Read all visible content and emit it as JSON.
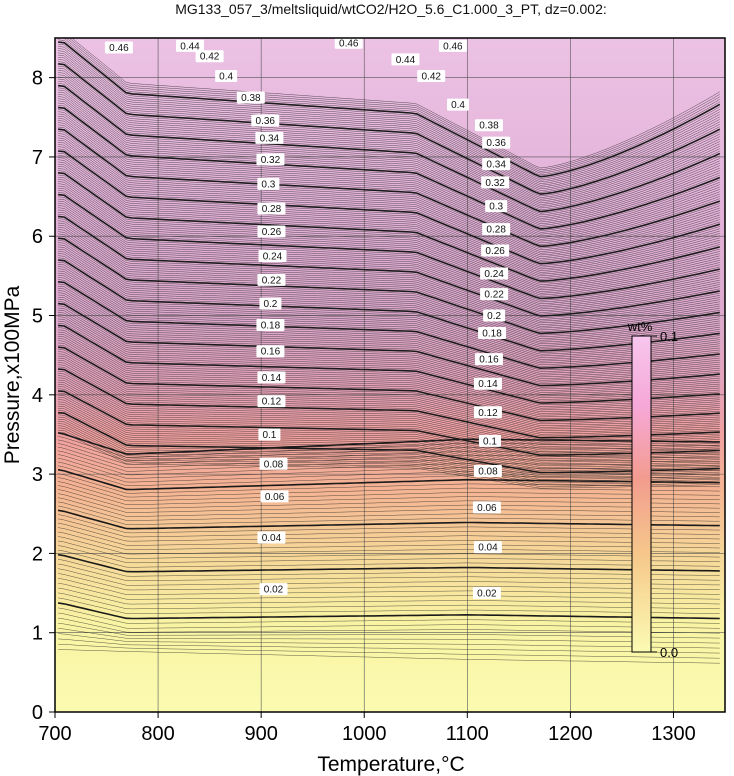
{
  "chart_data": {
    "type": "contour",
    "title": "MG133_057_3/meltsliquid/wtCO2/H2O_5.6_C1.000_3_PT, dz=0.002:",
    "xlabel": "Temperature,°C",
    "ylabel": "Pressure,x100MPa",
    "xlim": [
      700,
      1350
    ],
    "ylim": [
      0,
      8.5
    ],
    "x_ticks": [
      700,
      800,
      900,
      1000,
      1100,
      1200,
      1300
    ],
    "y_ticks": [
      0,
      1,
      2,
      3,
      4,
      5,
      6,
      7,
      8
    ],
    "grid": true,
    "contour_interval": 0.002,
    "labeled_levels": [
      0.02,
      0.04,
      0.06,
      0.08,
      0.1,
      0.12,
      0.14,
      0.16,
      0.18,
      0.2,
      0.22,
      0.24,
      0.26,
      0.28,
      0.3,
      0.32,
      0.34,
      0.36,
      0.38,
      0.4,
      0.42,
      0.44,
      0.46
    ],
    "contour_labels": [
      {
        "text": "0.02",
        "x": 912,
        "y": 1.55
      },
      {
        "text": "0.02",
        "x": 1119,
        "y": 1.5
      },
      {
        "text": "0.04",
        "x": 910,
        "y": 2.2
      },
      {
        "text": "0.04",
        "x": 1120,
        "y": 2.08
      },
      {
        "text": "0.06",
        "x": 913,
        "y": 2.72
      },
      {
        "text": "0.06",
        "x": 1119,
        "y": 2.58
      },
      {
        "text": "0.08",
        "x": 912,
        "y": 3.13
      },
      {
        "text": "0.08",
        "x": 1120,
        "y": 3.04
      },
      {
        "text": "0.1",
        "x": 908,
        "y": 3.5
      },
      {
        "text": "0.1",
        "x": 1122,
        "y": 3.42
      },
      {
        "text": "0.12",
        "x": 910,
        "y": 3.92
      },
      {
        "text": "0.12",
        "x": 1120,
        "y": 3.78
      },
      {
        "text": "0.14",
        "x": 910,
        "y": 4.22
      },
      {
        "text": "0.14",
        "x": 1120,
        "y": 4.14
      },
      {
        "text": "0.16",
        "x": 909,
        "y": 4.55
      },
      {
        "text": "0.16",
        "x": 1121,
        "y": 4.45
      },
      {
        "text": "0.18",
        "x": 909,
        "y": 4.88
      },
      {
        "text": "0.18",
        "x": 1124,
        "y": 4.78
      },
      {
        "text": "0.2",
        "x": 909,
        "y": 5.15
      },
      {
        "text": "0.2",
        "x": 1126,
        "y": 5.0
      },
      {
        "text": "0.22",
        "x": 910,
        "y": 5.45
      },
      {
        "text": "0.22",
        "x": 1126,
        "y": 5.27
      },
      {
        "text": "0.24",
        "x": 911,
        "y": 5.75
      },
      {
        "text": "0.24",
        "x": 1126,
        "y": 5.53
      },
      {
        "text": "0.26",
        "x": 910,
        "y": 6.06
      },
      {
        "text": "0.26",
        "x": 1127,
        "y": 5.82
      },
      {
        "text": "0.28",
        "x": 910,
        "y": 6.35
      },
      {
        "text": "0.28",
        "x": 1128,
        "y": 6.09
      },
      {
        "text": "0.3",
        "x": 907,
        "y": 6.66
      },
      {
        "text": "0.3",
        "x": 1128,
        "y": 6.38
      },
      {
        "text": "0.32",
        "x": 909,
        "y": 6.97
      },
      {
        "text": "0.32",
        "x": 1127,
        "y": 6.68
      },
      {
        "text": "0.34",
        "x": 908,
        "y": 7.24
      },
      {
        "text": "0.34",
        "x": 1128,
        "y": 6.91
      },
      {
        "text": "0.36",
        "x": 904,
        "y": 7.46
      },
      {
        "text": "0.36",
        "x": 1128,
        "y": 7.18
      },
      {
        "text": "0.38",
        "x": 890,
        "y": 7.75
      },
      {
        "text": "0.38",
        "x": 1121,
        "y": 7.4
      },
      {
        "text": "0.4",
        "x": 866,
        "y": 8.02
      },
      {
        "text": "0.4",
        "x": 1091,
        "y": 7.66
      },
      {
        "text": "0.42",
        "x": 850,
        "y": 8.27
      },
      {
        "text": "0.42",
        "x": 1065,
        "y": 8.02
      },
      {
        "text": "0.44",
        "x": 831,
        "y": 8.4
      },
      {
        "text": "0.44",
        "x": 1040,
        "y": 8.23
      },
      {
        "text": "0.46",
        "x": 762,
        "y": 8.38
      },
      {
        "text": "0.46",
        "x": 1086,
        "y": 8.4
      },
      {
        "text": "0.46",
        "x": 985,
        "y": 8.44
      }
    ],
    "colorbar": {
      "label": "wt%",
      "min_label": "0.0",
      "max_label": "0.1",
      "min": 0.0,
      "max": 0.1,
      "colors": [
        "#fbfbb4",
        "#f6c98b",
        "#f29c8f",
        "#f6a8d8",
        "#f7c6ee"
      ]
    }
  }
}
